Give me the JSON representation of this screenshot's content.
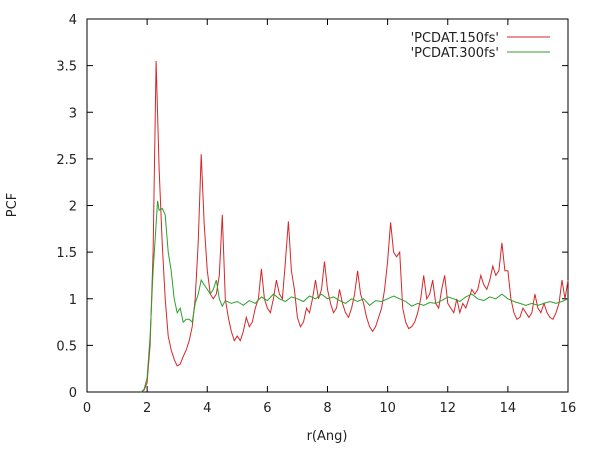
{
  "chart_data": {
    "type": "line",
    "title": "",
    "xlabel": "r(Ang)",
    "ylabel": "PCF",
    "xlim": [
      0,
      16
    ],
    "ylim": [
      0,
      4
    ],
    "xticks": [
      0,
      2,
      4,
      6,
      8,
      10,
      12,
      14,
      16
    ],
    "yticks": [
      0,
      0.5,
      1,
      1.5,
      2,
      2.5,
      3,
      3.5,
      4
    ],
    "ytick_labels": [
      "0",
      "0.5",
      "1",
      "1.5",
      "2",
      "2.5",
      "3",
      "3.5",
      "4"
    ],
    "grid": false,
    "legend": "top-right",
    "series": [
      {
        "name": "'PCDAT.150fs'",
        "color": "#d62728",
        "x": [
          1.8,
          1.9,
          2.0,
          2.1,
          2.2,
          2.3,
          2.4,
          2.5,
          2.6,
          2.7,
          2.8,
          2.9,
          3.0,
          3.1,
          3.2,
          3.3,
          3.4,
          3.5,
          3.6,
          3.7,
          3.8,
          3.9,
          4.0,
          4.1,
          4.2,
          4.3,
          4.4,
          4.5,
          4.6,
          4.7,
          4.8,
          4.9,
          5.0,
          5.1,
          5.2,
          5.3,
          5.4,
          5.5,
          5.6,
          5.7,
          5.8,
          5.9,
          6.0,
          6.1,
          6.2,
          6.3,
          6.4,
          6.5,
          6.6,
          6.7,
          6.8,
          6.9,
          7.0,
          7.1,
          7.2,
          7.3,
          7.4,
          7.5,
          7.6,
          7.7,
          7.8,
          7.9,
          8.0,
          8.1,
          8.2,
          8.3,
          8.4,
          8.5,
          8.6,
          8.7,
          8.8,
          8.9,
          9.0,
          9.1,
          9.2,
          9.3,
          9.4,
          9.5,
          9.6,
          9.7,
          9.8,
          9.9,
          10.0,
          10.1,
          10.2,
          10.3,
          10.4,
          10.5,
          10.6,
          10.7,
          10.8,
          10.9,
          11.0,
          11.1,
          11.2,
          11.3,
          11.4,
          11.5,
          11.6,
          11.7,
          11.8,
          11.9,
          12.0,
          12.1,
          12.2,
          12.3,
          12.4,
          12.5,
          12.6,
          12.7,
          12.8,
          12.9,
          13.0,
          13.1,
          13.2,
          13.3,
          13.4,
          13.5,
          13.6,
          13.7,
          13.8,
          13.9,
          14.0,
          14.1,
          14.2,
          14.3,
          14.4,
          14.5,
          14.6,
          14.7,
          14.8,
          14.9,
          15.0,
          15.1,
          15.2,
          15.3,
          15.4,
          15.5,
          15.6,
          15.7,
          15.8,
          15.9,
          16.0
        ],
        "y": [
          0,
          0.02,
          0.1,
          0.5,
          1.5,
          3.55,
          2.4,
          1.6,
          1.0,
          0.6,
          0.45,
          0.35,
          0.28,
          0.3,
          0.38,
          0.45,
          0.55,
          0.7,
          1.0,
          1.6,
          2.55,
          1.8,
          1.3,
          1.05,
          1.0,
          1.05,
          1.25,
          1.9,
          1.0,
          0.8,
          0.65,
          0.55,
          0.6,
          0.55,
          0.65,
          0.8,
          0.7,
          0.75,
          0.9,
          1.0,
          1.32,
          1.0,
          0.9,
          0.85,
          1.0,
          1.2,
          1.05,
          1.0,
          1.4,
          1.83,
          1.3,
          1.1,
          0.8,
          0.7,
          0.75,
          0.9,
          0.85,
          1.0,
          1.2,
          1.0,
          1.1,
          1.4,
          1.1,
          0.95,
          0.85,
          0.9,
          1.1,
          0.95,
          0.85,
          0.8,
          0.9,
          1.05,
          1.3,
          1.05,
          0.95,
          0.8,
          0.7,
          0.65,
          0.7,
          0.8,
          0.9,
          1.1,
          1.4,
          1.82,
          1.5,
          1.45,
          1.5,
          0.9,
          0.75,
          0.68,
          0.7,
          0.75,
          0.85,
          1.0,
          1.25,
          1.0,
          1.05,
          1.2,
          0.95,
          0.9,
          1.1,
          1.25,
          0.95,
          0.9,
          0.85,
          1.0,
          0.85,
          0.95,
          0.9,
          1.0,
          1.1,
          1.05,
          1.1,
          1.25,
          1.15,
          1.1,
          1.2,
          1.35,
          1.25,
          1.3,
          1.6,
          1.3,
          1.3,
          1.0,
          0.85,
          0.78,
          0.8,
          0.9,
          0.85,
          0.8,
          0.85,
          1.05,
          0.9,
          0.85,
          0.95,
          0.85,
          0.8,
          0.78,
          0.85,
          0.95,
          1.2,
          1.0,
          1.2
        ]
      },
      {
        "name": "'PCDAT.300fs'",
        "color": "#2ca02c",
        "x": [
          1.8,
          1.9,
          2.0,
          2.1,
          2.2,
          2.3,
          2.35,
          2.4,
          2.5,
          2.6,
          2.7,
          2.8,
          2.9,
          3.0,
          3.1,
          3.2,
          3.3,
          3.4,
          3.5,
          3.6,
          3.7,
          3.8,
          3.9,
          4.0,
          4.1,
          4.2,
          4.3,
          4.4,
          4.5,
          4.6,
          4.8,
          5.0,
          5.2,
          5.4,
          5.6,
          5.8,
          6.0,
          6.2,
          6.4,
          6.6,
          6.8,
          7.0,
          7.2,
          7.4,
          7.6,
          7.8,
          8.0,
          8.2,
          8.4,
          8.6,
          8.8,
          9.0,
          9.2,
          9.4,
          9.6,
          9.8,
          10.0,
          10.2,
          10.4,
          10.6,
          10.8,
          11.0,
          11.2,
          11.4,
          11.6,
          11.8,
          12.0,
          12.2,
          12.4,
          12.6,
          12.8,
          13.0,
          13.2,
          13.4,
          13.6,
          13.8,
          14.0,
          14.2,
          14.4,
          14.6,
          14.8,
          15.0,
          15.2,
          15.4,
          15.6,
          15.8,
          16.0
        ],
        "y": [
          0,
          0.03,
          0.15,
          0.6,
          1.3,
          1.8,
          2.05,
          1.95,
          1.97,
          1.9,
          1.5,
          1.3,
          1.0,
          0.85,
          0.9,
          0.75,
          0.78,
          0.78,
          0.75,
          0.95,
          1.05,
          1.2,
          1.15,
          1.1,
          1.05,
          1.1,
          1.2,
          1.0,
          0.92,
          0.98,
          0.95,
          0.97,
          0.93,
          0.98,
          0.95,
          1.02,
          0.98,
          1.05,
          1.0,
          0.97,
          1.02,
          1.0,
          0.97,
          1.03,
          1.0,
          1.05,
          1.0,
          1.02,
          0.98,
          0.95,
          1.0,
          0.97,
          1.0,
          0.93,
          0.98,
          0.97,
          1.0,
          1.03,
          1.0,
          0.97,
          0.92,
          0.95,
          0.93,
          0.96,
          0.95,
          0.98,
          1.02,
          1.0,
          0.97,
          1.02,
          1.05,
          1.0,
          0.98,
          1.02,
          1.0,
          1.05,
          1.0,
          0.97,
          0.95,
          0.93,
          0.95,
          0.93,
          0.95,
          0.97,
          0.95,
          0.97,
          1.0
        ]
      }
    ]
  }
}
